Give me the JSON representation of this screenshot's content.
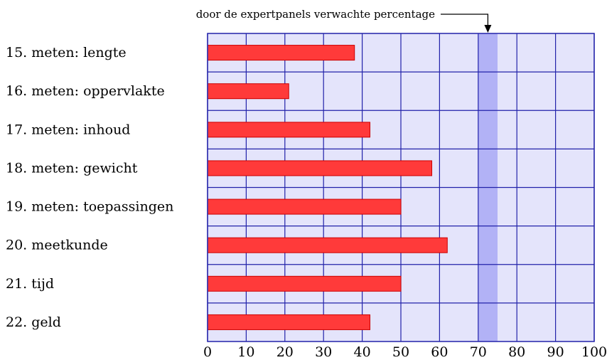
{
  "chart_data": {
    "type": "bar",
    "orientation": "horizontal",
    "categories": [
      "15. meten: lengte",
      "16. meten: oppervlakte",
      "17. meten: inhoud",
      "18. meten: gewicht",
      "19. meten: toepassingen",
      "20. meetkunde",
      "21. tijd",
      "22. geld"
    ],
    "values": [
      38,
      21,
      42,
      58,
      50,
      62,
      50,
      42
    ],
    "xlim": [
      0,
      100
    ],
    "xticks": [
      0,
      10,
      20,
      30,
      40,
      50,
      60,
      70,
      80,
      90,
      100
    ],
    "grid": true,
    "expected_band": {
      "from": 70,
      "to": 75
    },
    "annotation": "door de expertpanels verwachte percentage",
    "colors": {
      "bar_fill": "#ff3a3a",
      "bar_stroke": "#cc0000",
      "plot_background": "#e4e4fb",
      "band_fill": "#b2b2f6",
      "grid": "#2222aa"
    }
  }
}
